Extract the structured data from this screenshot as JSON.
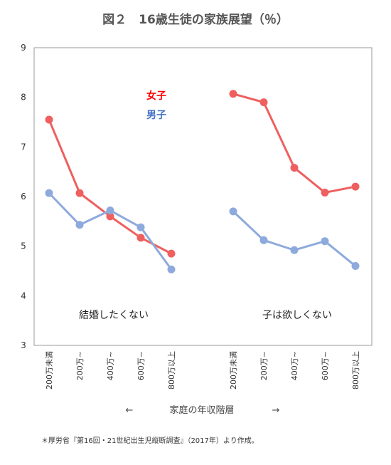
{
  "title": "図２　16歳生徒の家族展望（％）",
  "legend": [
    {
      "label": "女子",
      "color": "#ff0000"
    },
    {
      "label": "男子",
      "color": "#4472c4"
    }
  ],
  "x_axis_label": "家庭の年収階層",
  "arrow_left": "←",
  "arrow_right": "→",
  "footnote": "＊厚労省『第16回・21世紀出生児縦断調査』（2017年）より作成。",
  "chart_data": {
    "type": "line",
    "ylim": [
      3,
      9
    ],
    "yticks": [
      "3",
      "4",
      "5",
      "6",
      "7",
      "8",
      "9"
    ],
    "grid": false,
    "categories": [
      "200万未満",
      "200万~",
      "400万~",
      "600万~",
      "800万以上"
    ],
    "panels": [
      {
        "label": "結婚したくない",
        "series": [
          {
            "name": "女子",
            "color": "#ef5f5f",
            "values": [
              7.55,
              6.07,
              5.6,
              5.17,
              4.85
            ]
          },
          {
            "name": "男子",
            "color": "#8eaadc",
            "values": [
              6.07,
              5.43,
              5.72,
              5.38,
              4.53
            ]
          }
        ]
      },
      {
        "label": "子は欲しくない",
        "series": [
          {
            "name": "女子",
            "color": "#ef5f5f",
            "values": [
              8.07,
              7.9,
              6.58,
              6.08,
              6.2
            ]
          },
          {
            "name": "男子",
            "color": "#8eaadc",
            "values": [
              5.7,
              5.12,
              4.92,
              5.1,
              4.6
            ]
          }
        ]
      }
    ]
  }
}
